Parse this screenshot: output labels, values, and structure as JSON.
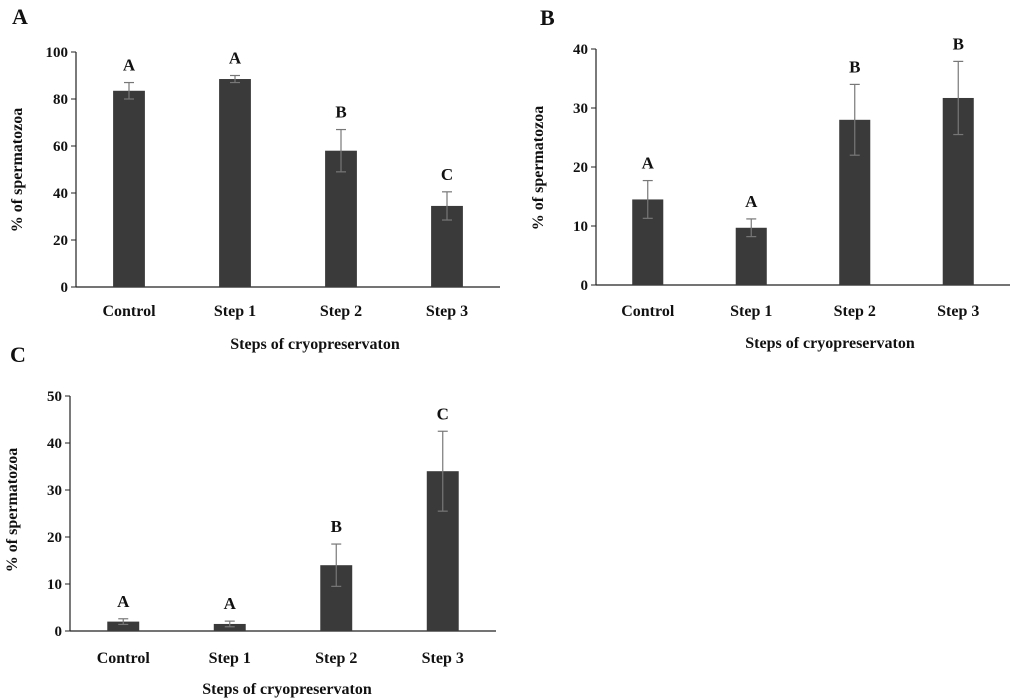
{
  "chart_data": [
    {
      "panel": "A",
      "type": "bar",
      "categories": [
        "Control",
        "Step 1",
        "Step 2",
        "Step 3"
      ],
      "values": [
        83.5,
        88.5,
        58,
        34.5
      ],
      "errors": [
        3.5,
        1.5,
        9,
        6
      ],
      "letters": [
        "A",
        "A",
        "B",
        "C"
      ],
      "xlabel": "Steps of cryopreservaton",
      "ylabel": "% of spermatozoa",
      "ylim": [
        0,
        100
      ],
      "yticks": [
        0,
        20,
        40,
        60,
        80,
        100
      ],
      "bar_color": "#3a3a3a",
      "grid": false
    },
    {
      "panel": "B",
      "type": "bar",
      "categories": [
        "Control",
        "Step 1",
        "Step 2",
        "Step 3"
      ],
      "values": [
        14.5,
        9.7,
        28,
        31.7
      ],
      "errors": [
        3.2,
        1.5,
        6,
        6.2
      ],
      "letters": [
        "A",
        "A",
        "B",
        "B"
      ],
      "xlabel": "Steps of cryopreservaton",
      "ylabel": "% of spermatozoa",
      "ylim": [
        0,
        40
      ],
      "yticks": [
        0,
        10,
        20,
        30,
        40
      ],
      "bar_color": "#3a3a3a",
      "grid": false
    },
    {
      "panel": "C",
      "type": "bar",
      "categories": [
        "Control",
        "Step 1",
        "Step 2",
        "Step 3"
      ],
      "values": [
        2,
        1.5,
        14,
        34
      ],
      "errors": [
        0.6,
        0.6,
        4.5,
        8.5
      ],
      "letters": [
        "A",
        "A",
        "B",
        "C"
      ],
      "xlabel": "Steps of cryopreservaton",
      "ylabel": "% of spermatozoa",
      "ylim": [
        0,
        50
      ],
      "yticks": [
        0,
        10,
        20,
        30,
        40,
        50
      ],
      "bar_color": "#3a3a3a",
      "grid": false
    }
  ]
}
